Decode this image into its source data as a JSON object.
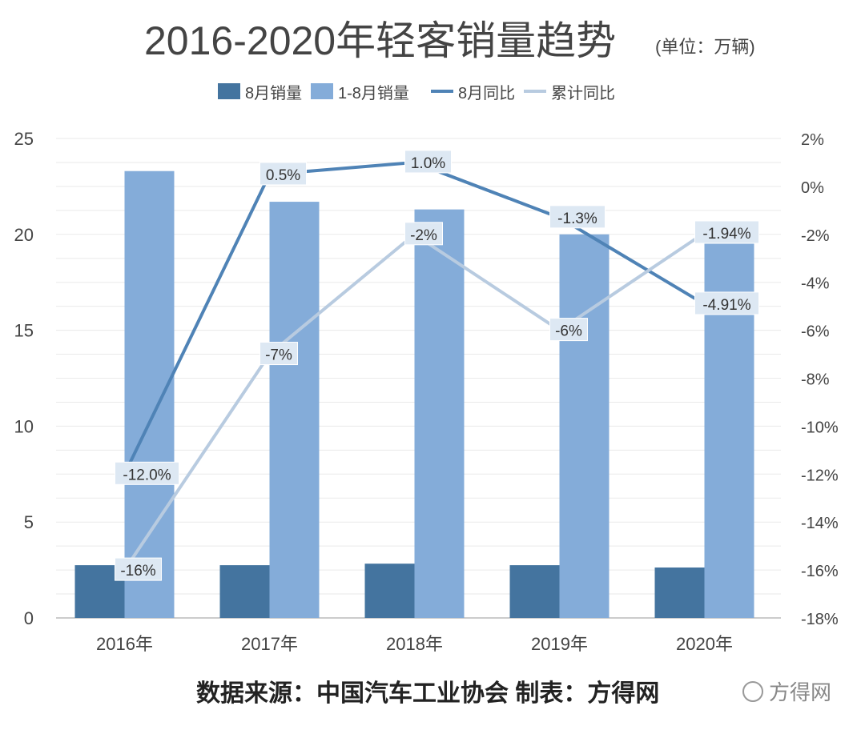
{
  "chart_data": {
    "type": "bar",
    "title": "2016-2020年轻客销量趋势",
    "unit_note": "(单位：万辆)",
    "categories": [
      "2016年",
      "2017年",
      "2018年",
      "2019年",
      "2020年"
    ],
    "series": [
      {
        "name": "8月销量",
        "kind": "bar",
        "axis": "left",
        "color": "#44749f",
        "values": [
          2.75,
          2.75,
          2.83,
          2.75,
          2.63
        ]
      },
      {
        "name": "1-8月销量",
        "kind": "bar",
        "axis": "left",
        "color": "#84acd9",
        "values": [
          23.3,
          21.7,
          21.3,
          20.0,
          19.7
        ]
      },
      {
        "name": "8月同比",
        "kind": "line",
        "axis": "right",
        "color": "#4f83b6",
        "values": [
          -12.0,
          0.5,
          1.0,
          -1.3,
          -4.91
        ],
        "labels": [
          "-12.0%",
          "0.5%",
          "1.0%",
          "-1.3%",
          "-4.91%"
        ]
      },
      {
        "name": "累计同比",
        "kind": "line",
        "axis": "right",
        "color": "#b8cbe0",
        "values": [
          -16,
          -7,
          -2,
          -6,
          -1.94
        ],
        "labels": [
          "-16%",
          "-7%",
          "-2%",
          "-6%",
          "-1.94%"
        ]
      }
    ],
    "left_axis": {
      "ylim": [
        0,
        25
      ],
      "ticks": [
        "0",
        "5",
        "10",
        "15",
        "20",
        "25"
      ]
    },
    "right_axis": {
      "ylim": [
        -18,
        2
      ],
      "ticks": [
        "-18%",
        "-16%",
        "-14%",
        "-12%",
        "-10%",
        "-8%",
        "-6%",
        "-4%",
        "-2%",
        "0%",
        "2%"
      ]
    },
    "grid": true,
    "legend_position": "top"
  },
  "footer": {
    "source": "数据来源：中国汽车工业协会 制表：方得网",
    "watermark": "方得网"
  }
}
